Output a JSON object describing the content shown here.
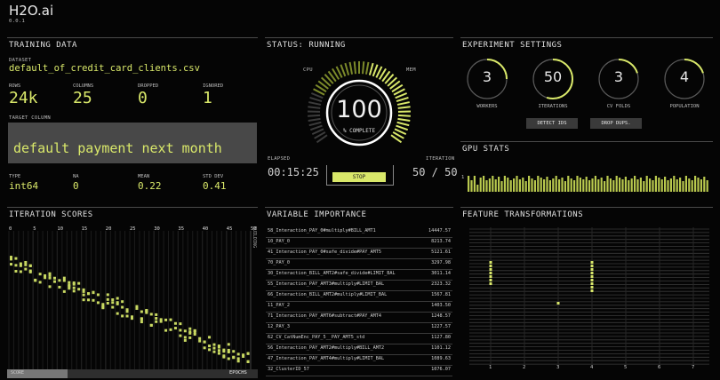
{
  "app": {
    "title": "H2O.ai",
    "version": "0.0.1"
  },
  "training": {
    "header": "TRAINING DATA",
    "dataset_label": "DATASET",
    "dataset": "default_of_credit_card_clients.csv",
    "stats": [
      {
        "label": "ROWS",
        "value": "24k"
      },
      {
        "label": "COLUMNS",
        "value": "25"
      },
      {
        "label": "DROPPED",
        "value": "0"
      },
      {
        "label": "IGNORED",
        "value": "1"
      }
    ],
    "target_label": "TARGET COLUMN",
    "target": "default payment next month",
    "col_stats": [
      {
        "label": "TYPE",
        "value": "int64"
      },
      {
        "label": "NA",
        "value": "0"
      },
      {
        "label": "MEAN",
        "value": "0.22"
      },
      {
        "label": "STD DEV",
        "value": "0.41"
      }
    ]
  },
  "status": {
    "header": "STATUS: RUNNING",
    "cpu_label": "CPU",
    "mem_label": "MEM",
    "percent": "100",
    "percent_label": "% COMPLETE",
    "progress": 1.0,
    "elapsed_label": "ELAPSED",
    "elapsed": "00:15:25",
    "iteration_label": "ITERATION",
    "iteration": "50 / 50",
    "stop_label": "STOP"
  },
  "settings": {
    "header": "EXPERIMENT SETTINGS",
    "dials": [
      {
        "value": "3",
        "label": "WORKERS",
        "fill": 0.25
      },
      {
        "value": "50",
        "label": "ITERATIONS",
        "fill": 0.55
      },
      {
        "value": "3",
        "label": "CV FOLDS",
        "fill": 0.2
      },
      {
        "value": "4",
        "label": "POPULATION",
        "fill": 0.2
      }
    ],
    "detect_label": "DETECT IDS",
    "drop_label": "DROP DUPS."
  },
  "gpu": {
    "header": "GPU STATS",
    "axis_label": "1",
    "bars": [
      0.9,
      0.85,
      0.9,
      0.8,
      0.88,
      0.9,
      0.85,
      0.87,
      0.9,
      0.86,
      0.89,
      0.84,
      0.9,
      0.88,
      0.85,
      0.87,
      0.9,
      0.86,
      0.88,
      0.84,
      0.9,
      0.87,
      0.85,
      0.9,
      0.88,
      0.86,
      0.89,
      0.85,
      0.87,
      0.9,
      0.86,
      0.88,
      0.84,
      0.9,
      0.87,
      0.85,
      0.9,
      0.88,
      0.86,
      0.89,
      0.85,
      0.87,
      0.9,
      0.86,
      0.88,
      0.84,
      0.9,
      0.87,
      0.85,
      0.9,
      0.88,
      0.86,
      0.89,
      0.85,
      0.87,
      0.9,
      0.86,
      0.88,
      0.84,
      0.9,
      0.87,
      0.85,
      0.9,
      0.88,
      0.86,
      0.89,
      0.85,
      0.87,
      0.9,
      0.86,
      0.88,
      0.84,
      0.9,
      0.87,
      0.85,
      0.9,
      0.88,
      0.86,
      0.89,
      0.85
    ]
  },
  "iteration_scores": {
    "header": "ITERATION SCORES",
    "ticks": [
      "0",
      "5",
      "10",
      "15",
      "20",
      "25",
      "30",
      "35",
      "40",
      "45",
      "50"
    ],
    "side_label": "BUILDING",
    "score_label": "SCORE",
    "epochs_label": "EPOCHS"
  },
  "variable_importance": {
    "header": "VARIABLE IMPORTANCE",
    "items": [
      {
        "name": "58_Interaction_PAY_0#multiply#BILL_AMT1",
        "value": "14447.57"
      },
      {
        "name": "10_PAY_0",
        "value": "8213.74"
      },
      {
        "name": "41_Interaction_PAY_0#safe_divide#PAY_AMT5",
        "value": "5121.61"
      },
      {
        "name": "70_PAY_0",
        "value": "3297.98"
      },
      {
        "name": "30_Interaction_BILL_AMT2#safe_divide#LIMIT_BAL",
        "value": "3011.14"
      },
      {
        "name": "55_Interaction_PAY_AMT3#multiply#LIMIT_BAL",
        "value": "2323.32"
      },
      {
        "name": "66_Interaction_BILL_AMT2#multiply#LIMIT_BAL",
        "value": "1567.81"
      },
      {
        "name": "11_PAY_2",
        "value": "1403.50"
      },
      {
        "name": "71_Interaction_PAY_AMT6#subtract#PAY_AMT4",
        "value": "1248.57"
      },
      {
        "name": "12_PAY_3",
        "value": "1227.57"
      },
      {
        "name": "62_CV_CatNumEnc_PAY_5__PAY_AMT5_std",
        "value": "1127.80"
      },
      {
        "name": "56_Interaction_PAY_AMT2#multiply#BILL_AMT2",
        "value": "1101.12"
      },
      {
        "name": "47_Interaction_PAY_AMT4#multiply#LIMIT_BAL",
        "value": "1089.63"
      },
      {
        "name": "32_ClusterID_57",
        "value": "1076.07"
      }
    ]
  },
  "feature_transformations": {
    "header": "FEATURE TRANSFORMATIONS",
    "ticks": [
      "1",
      "2",
      "3",
      "4",
      "5",
      "6",
      "7"
    ]
  }
}
